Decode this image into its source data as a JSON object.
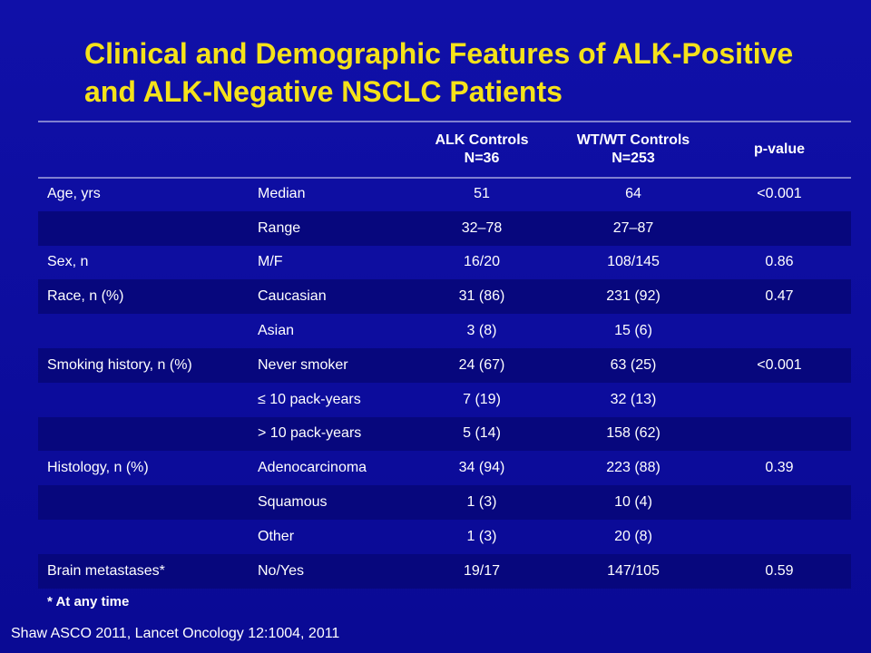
{
  "title": "Clinical and Demographic Features of ALK-Positive and ALK-Negative NSCLC Patients",
  "table": {
    "headers": [
      "",
      "",
      "ALK Controls\nN=36",
      "WT/WT Controls\nN=253",
      "p-value"
    ],
    "header_lines": {
      "alk_line1": "ALK Controls",
      "alk_line2": "N=36",
      "wt_line1": "WT/WT Controls",
      "wt_line2": "N=253",
      "pvalue": "p-value"
    },
    "rows": [
      {
        "feature": "Age, yrs",
        "sub": "Median",
        "alk": "51",
        "wt": "64",
        "p": "<0.001"
      },
      {
        "feature": "",
        "sub": "Range",
        "alk": "32–78",
        "wt": "27–87",
        "p": ""
      },
      {
        "feature": "Sex, n",
        "sub": "M/F",
        "alk": "16/20",
        "wt": "108/145",
        "p": "0.86"
      },
      {
        "feature": "Race, n (%)",
        "sub": "Caucasian",
        "alk": "31 (86)",
        "wt": "231 (92)",
        "p": "0.47"
      },
      {
        "feature": "",
        "sub": "Asian",
        "alk": "3 (8)",
        "wt": "15 (6)",
        "p": ""
      },
      {
        "feature": "Smoking history, n (%)",
        "sub": "Never smoker",
        "alk": "24 (67)",
        "wt": "63 (25)",
        "p": "<0.001"
      },
      {
        "feature": "",
        "sub": "≤ 10 pack-years",
        "alk": "7 (19)",
        "wt": "32 (13)",
        "p": ""
      },
      {
        "feature": "",
        "sub": "> 10 pack-years",
        "alk": "5 (14)",
        "wt": "158 (62)",
        "p": ""
      },
      {
        "feature": "Histology, n (%)",
        "sub": "Adenocarcinoma",
        "alk": "34 (94)",
        "wt": "223 (88)",
        "p": "0.39"
      },
      {
        "feature": "",
        "sub": "Squamous",
        "alk": "1 (3)",
        "wt": "10 (4)",
        "p": ""
      },
      {
        "feature": "",
        "sub": "Other",
        "alk": "1 (3)",
        "wt": "20 (8)",
        "p": ""
      },
      {
        "feature": "Brain metastases*",
        "sub": "No/Yes",
        "alk": "19/17",
        "wt": "147/105",
        "p": "0.59"
      }
    ]
  },
  "footnote": "* At any time",
  "citation": "Shaw ASCO 2011, Lancet Oncology 12:1004, 2011",
  "colors": {
    "background": "#0b0b9a",
    "title": "#f5e21a",
    "text": "#ffffff",
    "stripe": "#07077d"
  }
}
